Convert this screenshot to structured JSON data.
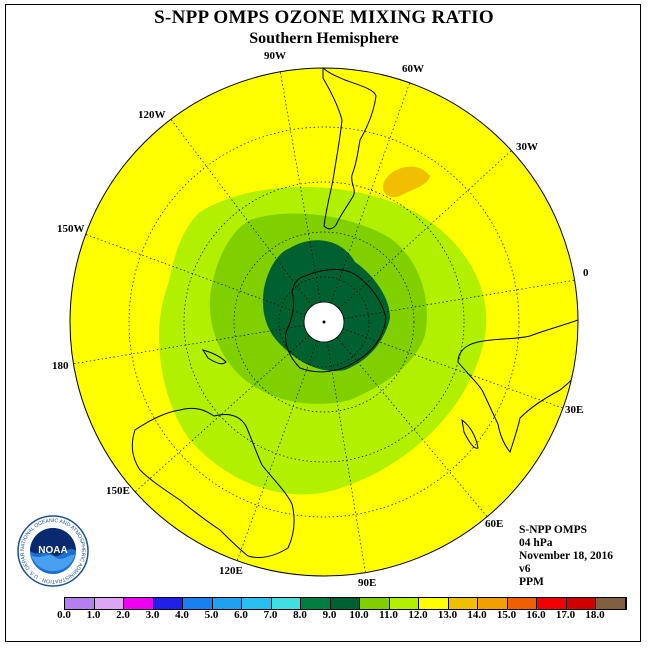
{
  "header": {
    "title": "S-NPP OMPS OZONE MIXING RATIO",
    "subtitle": "Southern Hemisphere"
  },
  "map": {
    "projection": "south-polar-stereographic",
    "ocean_color": "#ffff00",
    "longitude_labels": {
      "lon_90w": "90W",
      "lon_60w": "60W",
      "lon_30w": "30W",
      "lon_0": "0",
      "lon_30e": "30E",
      "lon_60e": "60E",
      "lon_90e": "90E",
      "lon_120e": "120E",
      "lon_150e": "150E",
      "lon_180": "180",
      "lon_150w": "150W",
      "lon_120w": "120W"
    }
  },
  "info": {
    "instrument": "S-NPP OMPS",
    "level": "04 hPa",
    "date": "November 18, 2016",
    "version": "v6",
    "units": "PPM"
  },
  "legend": {
    "ticks": [
      "0.0",
      "1.0",
      "2.0",
      "3.0",
      "4.0",
      "5.0",
      "6.0",
      "7.0",
      "8.0",
      "9.0",
      "10.0",
      "11.0",
      "12.0",
      "13.0",
      "14.0",
      "15.0",
      "16.0",
      "17.0",
      "18.0"
    ],
    "colors": [
      "#b380ee",
      "#dda6f4",
      "#f000f0",
      "#2020e8",
      "#1880f0",
      "#20a0f0",
      "#28c0f0",
      "#40e0e0",
      "#008040",
      "#006030",
      "#80d000",
      "#b0f000",
      "#ffff00",
      "#f0c000",
      "#f0a000",
      "#f06000",
      "#f00000",
      "#d00000",
      "#806040"
    ]
  },
  "logo": {
    "text": "NOAA",
    "ring_text": "NATIONAL OCEANIC AND ATMOSPHERIC ADMINISTRATION · U.S. DEPARTMENT OF COMMERCE"
  }
}
